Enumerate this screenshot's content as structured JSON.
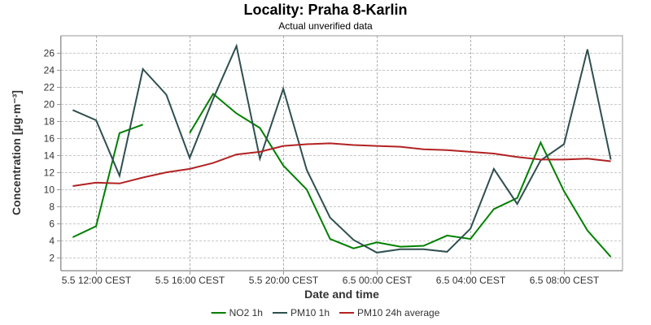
{
  "chart_data": {
    "type": "line",
    "title": "Locality: Praha 8-Karlin",
    "subtitle": "Actual unverified data",
    "xlabel": "Date and time",
    "ylabel": "Concentration [µg·m⁻³]",
    "x_ticks": [
      {
        "label": "5.5 12:00 CEST",
        "hour": 12
      },
      {
        "label": "5.5 16:00 CEST",
        "hour": 16
      },
      {
        "label": "5.5 20:00 CEST",
        "hour": 20
      },
      {
        "label": "6.5 00:00 CEST",
        "hour": 24
      },
      {
        "label": "6.5 04:00 CEST",
        "hour": 28
      },
      {
        "label": "6.5 08:00 CEST",
        "hour": 32
      }
    ],
    "xlim": [
      10.5,
      34.5
    ],
    "ylim": [
      0.5,
      28
    ],
    "y_ticks": [
      2,
      4,
      6,
      8,
      10,
      12,
      14,
      16,
      18,
      20,
      22,
      24,
      26
    ],
    "grid": true,
    "legend_position": "bottom",
    "series": [
      {
        "name": "NO2 1h",
        "color": "#008000",
        "points": [
          [
            11,
            4.4
          ],
          [
            12,
            5.7
          ],
          [
            13,
            16.6
          ],
          [
            14,
            17.6
          ],
          [
            16,
            16.6
          ],
          [
            17,
            21.2
          ],
          [
            18,
            18.9
          ],
          [
            19,
            17.2
          ],
          [
            20,
            12.8
          ],
          [
            21,
            10.0
          ],
          [
            22,
            4.2
          ],
          [
            23,
            3.1
          ],
          [
            24,
            3.8
          ],
          [
            25,
            3.3
          ],
          [
            26,
            3.4
          ],
          [
            27,
            4.6
          ],
          [
            28,
            4.2
          ],
          [
            29,
            7.7
          ],
          [
            30,
            9.0
          ],
          [
            31,
            15.5
          ],
          [
            32,
            9.8
          ],
          [
            33,
            5.2
          ],
          [
            34,
            2.1
          ]
        ]
      },
      {
        "name": "PM10 1h",
        "color": "#2f4f4f",
        "points": [
          [
            11,
            19.3
          ],
          [
            12,
            18.1
          ],
          [
            13,
            11.6
          ],
          [
            14,
            24.1
          ],
          [
            15,
            21.1
          ],
          [
            16,
            13.7
          ],
          [
            17,
            20.6
          ],
          [
            18,
            26.8
          ],
          [
            19,
            13.6
          ],
          [
            20,
            21.8
          ],
          [
            21,
            12.3
          ],
          [
            22,
            6.7
          ],
          [
            23,
            4.1
          ],
          [
            24,
            2.6
          ],
          [
            25,
            3.0
          ],
          [
            26,
            3.0
          ],
          [
            27,
            2.7
          ],
          [
            28,
            5.4
          ],
          [
            29,
            12.4
          ],
          [
            30,
            8.3
          ],
          [
            31,
            13.4
          ],
          [
            32,
            15.3
          ],
          [
            33,
            26.4
          ],
          [
            34,
            13.5
          ]
        ]
      },
      {
        "name": "PM10 24h average",
        "color": "#b22222",
        "points": [
          [
            11,
            10.4
          ],
          [
            12,
            10.8
          ],
          [
            13,
            10.7
          ],
          [
            14,
            11.4
          ],
          [
            15,
            12.0
          ],
          [
            16,
            12.4
          ],
          [
            17,
            13.1
          ],
          [
            18,
            14.1
          ],
          [
            19,
            14.4
          ],
          [
            20,
            15.1
          ],
          [
            21,
            15.3
          ],
          [
            22,
            15.4
          ],
          [
            23,
            15.2
          ],
          [
            24,
            15.1
          ],
          [
            25,
            15.0
          ],
          [
            26,
            14.7
          ],
          [
            27,
            14.6
          ],
          [
            28,
            14.4
          ],
          [
            29,
            14.2
          ],
          [
            30,
            13.8
          ],
          [
            31,
            13.5
          ],
          [
            32,
            13.5
          ],
          [
            33,
            13.6
          ],
          [
            34,
            13.3
          ]
        ]
      }
    ]
  }
}
